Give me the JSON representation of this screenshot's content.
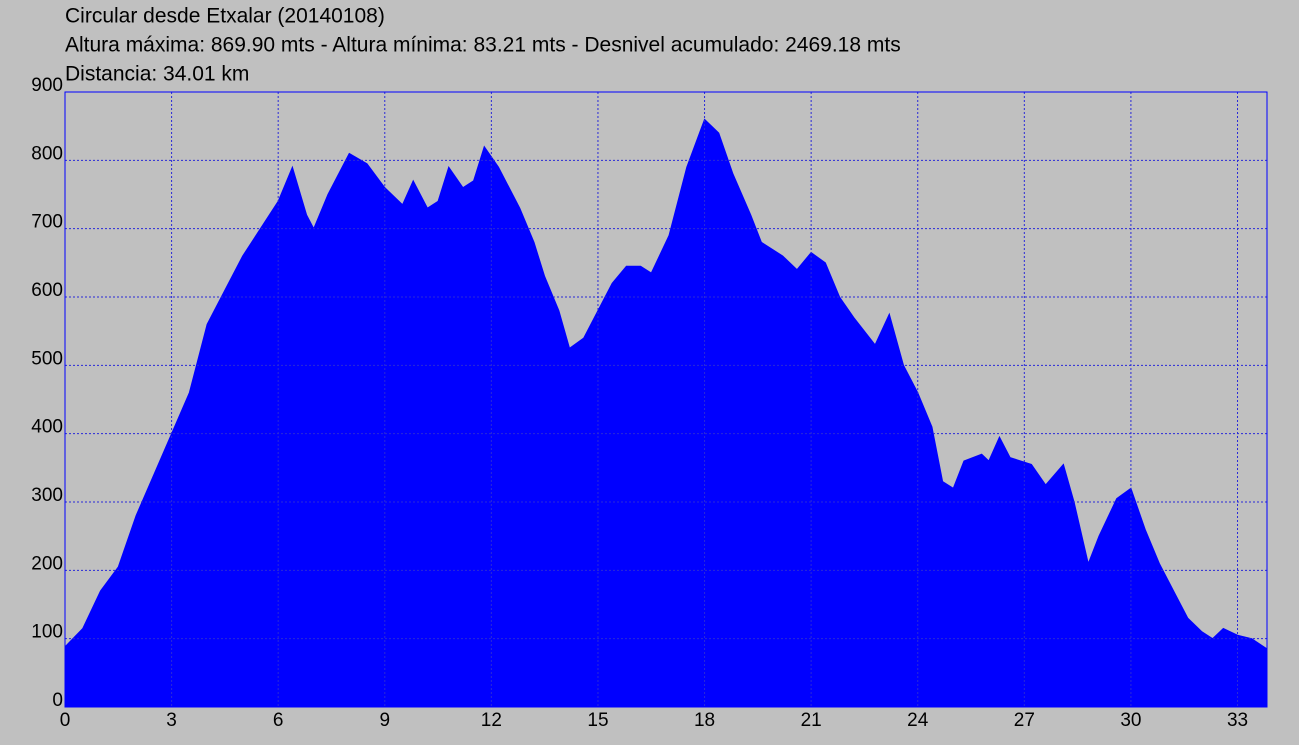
{
  "chart_data": {
    "type": "area",
    "title": "Circular desde Etxalar (20140108)",
    "subtitle": "Altura máxima: 869.90 mts - Altura mínima: 83.21 mts - Desnivel acumulado: 2469.18 mts",
    "annotation": "Distancia: 34.01 km",
    "color": "#0000ff",
    "grid": true,
    "xlim": [
      0,
      33.83
    ],
    "ylim": [
      0,
      900
    ],
    "xticks": [
      0,
      3,
      6,
      9,
      12,
      15,
      18,
      21,
      24,
      27,
      30,
      33
    ],
    "yticks": [
      0,
      100,
      200,
      300,
      400,
      500,
      600,
      700,
      800,
      900
    ],
    "x": [
      0,
      0.5,
      1,
      1.5,
      2,
      2.5,
      3,
      3.5,
      4,
      4.5,
      5,
      5.5,
      6,
      6.4,
      6.8,
      7,
      7.4,
      7.8,
      8,
      8.5,
      9,
      9.5,
      9.8,
      10.2,
      10.5,
      10.8,
      11.2,
      11.5,
      11.8,
      12.2,
      12.8,
      13.2,
      13.5,
      13.9,
      14.2,
      14.6,
      15,
      15.4,
      15.8,
      16.2,
      16.5,
      17,
      17.5,
      18,
      18.4,
      18.8,
      19.3,
      19.6,
      20.2,
      20.6,
      21,
      21.4,
      21.8,
      22.2,
      22.8,
      23.2,
      23.6,
      24,
      24.4,
      24.7,
      25,
      25.3,
      25.8,
      26,
      26.3,
      26.6,
      27.2,
      27.6,
      28.1,
      28.4,
      28.8,
      29.1,
      29.6,
      30,
      30.4,
      30.8,
      31.2,
      31.6,
      32,
      32.3,
      32.6,
      33,
      33.4,
      33.83
    ],
    "values": [
      88,
      115,
      170,
      205,
      280,
      340,
      400,
      460,
      560,
      610,
      660,
      700,
      740,
      790,
      720,
      700,
      750,
      790,
      810,
      795,
      760,
      735,
      770,
      730,
      740,
      790,
      760,
      770,
      820,
      790,
      730,
      680,
      630,
      580,
      525,
      540,
      580,
      620,
      645,
      645,
      635,
      690,
      790,
      860,
      840,
      780,
      720,
      680,
      660,
      640,
      665,
      650,
      600,
      570,
      530,
      575,
      500,
      460,
      410,
      330,
      320,
      360,
      370,
      360,
      395,
      365,
      355,
      325,
      355,
      300,
      210,
      250,
      305,
      320,
      260,
      210,
      170,
      130,
      110,
      100,
      115,
      105,
      100,
      85
    ]
  }
}
